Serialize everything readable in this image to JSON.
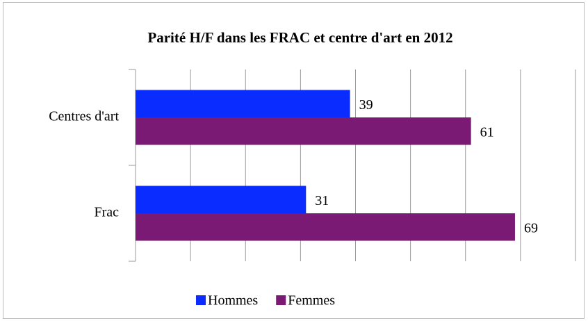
{
  "chart_data": {
    "type": "hbar",
    "title": "Parité H/F dans les FRAC et centre d'art en 2012",
    "categories": [
      "Centres d'art",
      "Frac"
    ],
    "series": [
      {
        "name": "Hommes",
        "color": "#0a2cff",
        "values": [
          39,
          31
        ]
      },
      {
        "name": "Femmes",
        "color": "#7b1a74",
        "values": [
          61,
          69
        ]
      }
    ],
    "xlim": [
      0,
      80
    ],
    "xticks": [
      0,
      10,
      20,
      30,
      40,
      50,
      60,
      70,
      80
    ],
    "grid": true,
    "legend": "bottom"
  }
}
